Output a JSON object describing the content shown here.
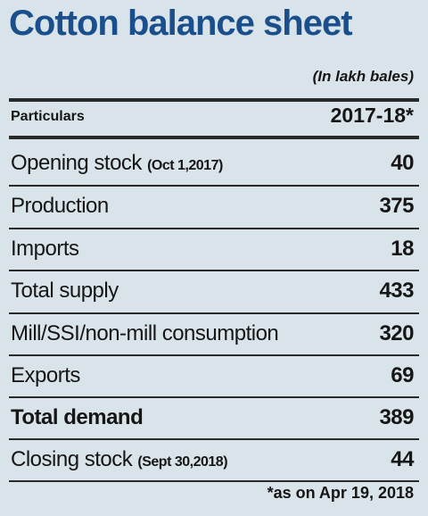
{
  "header": {
    "title": "Cotton balance sheet",
    "unit": "(In lakh bales)"
  },
  "table": {
    "columns": [
      "Particulars",
      "2017-18*"
    ],
    "rows": [
      {
        "label": "Opening stock",
        "note": "(Oct 1,2017)",
        "value": 40
      },
      {
        "label": "Production",
        "value": 375
      },
      {
        "label": "Imports",
        "value": 18
      },
      {
        "label": "Total supply",
        "value": 433
      },
      {
        "label": "Mill/SSI/non-mill consumption",
        "value": 320
      },
      {
        "label": "Exports",
        "value": 69
      },
      {
        "label": "Total demand",
        "value": 389
      },
      {
        "label": "Closing stock",
        "note": "(Sept 30,2018)",
        "value": 44
      }
    ]
  },
  "footnote": "*as on Apr 19, 2018"
}
